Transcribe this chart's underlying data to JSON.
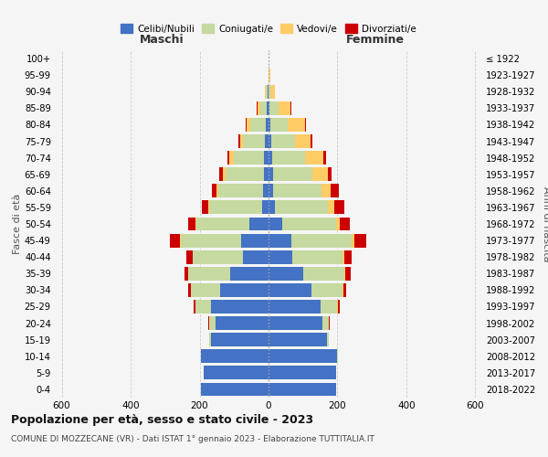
{
  "age_groups": [
    "0-4",
    "5-9",
    "10-14",
    "15-19",
    "20-24",
    "25-29",
    "30-34",
    "35-39",
    "40-44",
    "45-49",
    "50-54",
    "55-59",
    "60-64",
    "65-69",
    "70-74",
    "75-79",
    "80-84",
    "85-89",
    "90-94",
    "95-99",
    "100+"
  ],
  "birth_years": [
    "2018-2022",
    "2013-2017",
    "2008-2012",
    "2003-2007",
    "1998-2002",
    "1993-1997",
    "1988-1992",
    "1983-1987",
    "1978-1982",
    "1973-1977",
    "1968-1972",
    "1963-1967",
    "1958-1962",
    "1953-1957",
    "1948-1952",
    "1943-1947",
    "1938-1942",
    "1933-1937",
    "1928-1932",
    "1923-1927",
    "≤ 1922"
  ],
  "maschi_celibe": [
    195,
    188,
    195,
    168,
    155,
    168,
    140,
    112,
    75,
    80,
    55,
    18,
    16,
    14,
    12,
    10,
    8,
    4,
    2,
    0,
    0
  ],
  "maschi_coniugato": [
    0,
    0,
    2,
    5,
    18,
    45,
    85,
    120,
    145,
    175,
    155,
    155,
    130,
    110,
    90,
    65,
    45,
    20,
    5,
    1,
    0
  ],
  "maschi_vedovo": [
    0,
    0,
    0,
    0,
    0,
    0,
    0,
    0,
    1,
    2,
    2,
    3,
    5,
    8,
    12,
    8,
    10,
    8,
    3,
    0,
    0
  ],
  "maschi_divorziato": [
    0,
    0,
    0,
    0,
    2,
    4,
    8,
    12,
    18,
    30,
    22,
    18,
    12,
    10,
    5,
    5,
    2,
    2,
    0,
    0,
    0
  ],
  "femmine_celibe": [
    195,
    195,
    200,
    170,
    155,
    150,
    125,
    100,
    70,
    65,
    40,
    18,
    14,
    12,
    10,
    8,
    5,
    3,
    1,
    0,
    0
  ],
  "femmine_coniugato": [
    0,
    0,
    2,
    6,
    20,
    50,
    90,
    120,
    145,
    175,
    155,
    155,
    140,
    115,
    95,
    70,
    50,
    25,
    5,
    1,
    0
  ],
  "femmine_vedovo": [
    0,
    0,
    0,
    0,
    0,
    1,
    2,
    3,
    5,
    8,
    12,
    18,
    25,
    45,
    55,
    45,
    50,
    35,
    12,
    3,
    1
  ],
  "femmine_divorziato": [
    0,
    0,
    0,
    0,
    2,
    5,
    8,
    15,
    22,
    35,
    30,
    30,
    25,
    10,
    8,
    5,
    3,
    2,
    0,
    0,
    0
  ],
  "colors": {
    "celibe": "#4472C4",
    "coniugato": "#C5D9A0",
    "vedovo": "#FFCC66",
    "divorziato": "#CC0000"
  },
  "title": "Popolazione per età, sesso e stato civile - 2023",
  "subtitle": "COMUNE DI MOZZECANE (VR) - Dati ISTAT 1° gennaio 2023 - Elaborazione TUTTITALIA.IT",
  "xlabel_left": "Maschi",
  "xlabel_right": "Femmine",
  "ylabel_left": "Fasce di età",
  "ylabel_right": "Anni di nascita",
  "xlim": 620,
  "bg_color": "#f5f5f5",
  "grid_color": "#cccccc"
}
